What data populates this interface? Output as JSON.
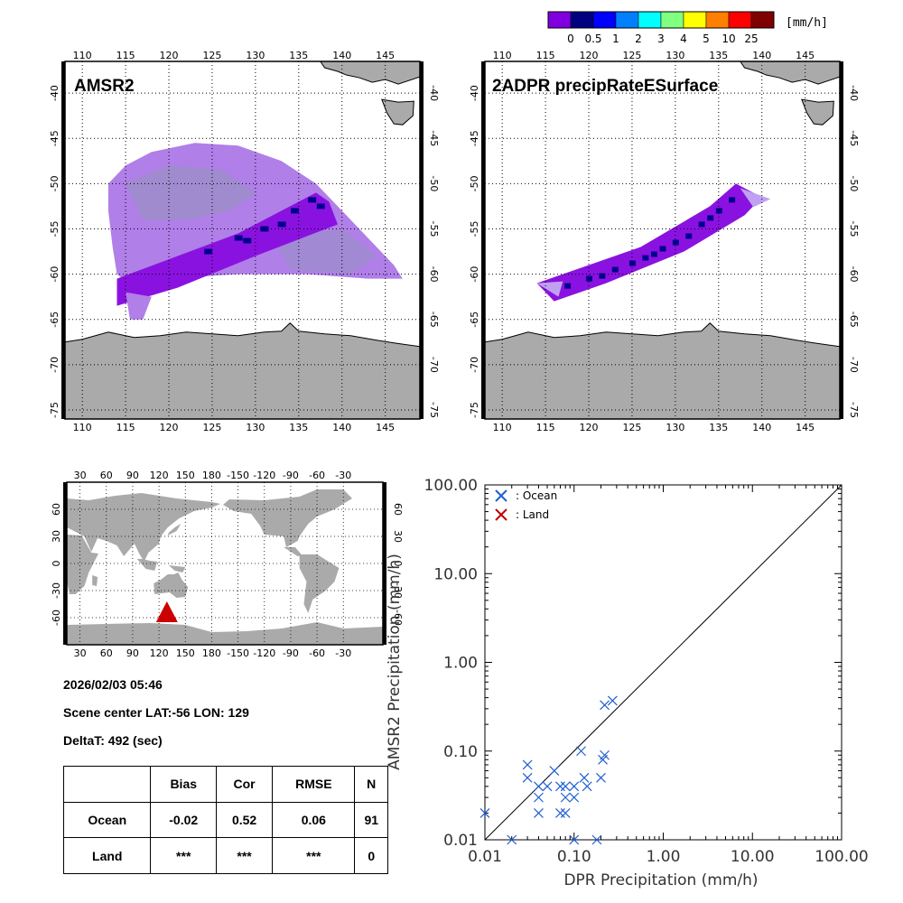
{
  "colorbar": {
    "unit": "[mm/h]",
    "colors": [
      "#8000e0",
      "#000080",
      "#0000ff",
      "#0080ff",
      "#00ffff",
      "#80ff80",
      "#ffff00",
      "#ff8000",
      "#ff0000",
      "#800000"
    ],
    "tick_labels": [
      "0",
      "0.5",
      "1",
      "2",
      "3",
      "4",
      "5",
      "10",
      "25"
    ]
  },
  "maps": {
    "lon_ticks": [
      "110",
      "115",
      "120",
      "125",
      "130",
      "135",
      "140",
      "145"
    ],
    "lat_ticks": [
      "-40",
      "-45",
      "-50",
      "-55",
      "-60",
      "-65",
      "-70",
      "-75"
    ],
    "left_title": "AMSR2",
    "right_title": "2ADPR precipRateESurface"
  },
  "world_map": {
    "lon_ticks": [
      "30",
      "60",
      "90",
      "120",
      "150",
      "180",
      "-150",
      "-120",
      "-90",
      "-60",
      "-30"
    ],
    "lat_ticks": [
      "60",
      "30",
      "0",
      "-30",
      "-60"
    ],
    "marker": {
      "lat": -56,
      "lon": 129,
      "color": "#cc0000"
    }
  },
  "info": {
    "datetime": "2026/02/03 05:46",
    "scene_center": "Scene center LAT:-56   LON: 129",
    "delta_t": "DeltaT:  492 (sec)"
  },
  "stats_table": {
    "headers": [
      "",
      "Bias",
      "Cor",
      "RMSE",
      "N"
    ],
    "rows": [
      {
        "label": "Ocean",
        "bias": "-0.02",
        "cor": "0.52",
        "rmse": "0.06",
        "n": "91"
      },
      {
        "label": "Land",
        "bias": "***",
        "cor": "***",
        "rmse": "***",
        "n": "0"
      }
    ]
  },
  "chart_data": {
    "type": "scatter",
    "xlabel": "DPR Precipitation (mm/h)",
    "ylabel": "AMSR2 Precipitation (mm/h)",
    "xscale": "log",
    "yscale": "log",
    "xlim": [
      0.01,
      100
    ],
    "ylim": [
      0.01,
      100
    ],
    "x_tick_labels": [
      "0.01",
      "0.10",
      "1.00",
      "10.00",
      "100.00"
    ],
    "y_tick_labels": [
      "0.01",
      "0.10",
      "1.00",
      "10.00",
      "100.00"
    ],
    "legend": [
      {
        "label": ": Ocean",
        "color": "#1f5fd0"
      },
      {
        "label": ": Land",
        "color": "#c00000"
      }
    ],
    "series": [
      {
        "name": "Ocean",
        "color": "#1f5fd0",
        "points": [
          [
            0.01,
            0.02
          ],
          [
            0.02,
            0.01
          ],
          [
            0.03,
            0.07
          ],
          [
            0.03,
            0.05
          ],
          [
            0.04,
            0.04
          ],
          [
            0.04,
            0.03
          ],
          [
            0.04,
            0.02
          ],
          [
            0.05,
            0.04
          ],
          [
            0.06,
            0.06
          ],
          [
            0.07,
            0.04
          ],
          [
            0.07,
            0.02
          ],
          [
            0.08,
            0.04
          ],
          [
            0.08,
            0.03
          ],
          [
            0.08,
            0.02
          ],
          [
            0.1,
            0.04
          ],
          [
            0.1,
            0.03
          ],
          [
            0.1,
            0.01
          ],
          [
            0.12,
            0.1
          ],
          [
            0.13,
            0.05
          ],
          [
            0.14,
            0.04
          ],
          [
            0.18,
            0.01
          ],
          [
            0.2,
            0.05
          ],
          [
            0.21,
            0.08
          ],
          [
            0.22,
            0.09
          ],
          [
            0.22,
            0.33
          ],
          [
            0.27,
            0.37
          ]
        ]
      },
      {
        "name": "Land",
        "color": "#c00000",
        "points": []
      }
    ]
  }
}
